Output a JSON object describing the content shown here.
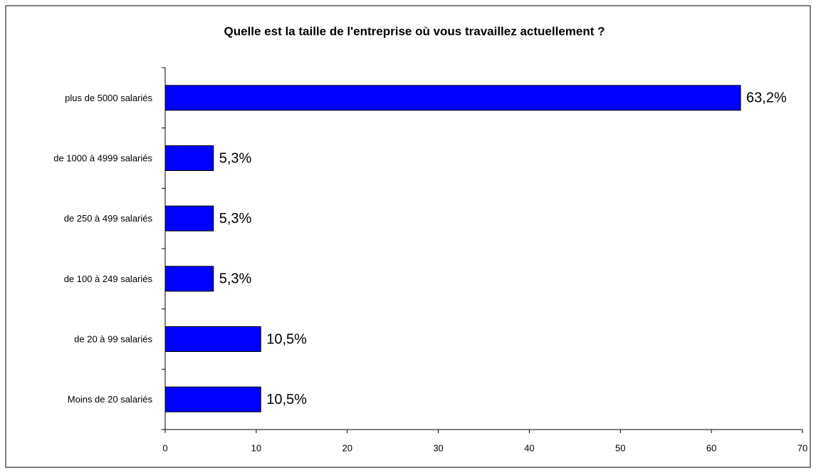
{
  "chart_data": {
    "type": "bar",
    "orientation": "horizontal",
    "title": "Quelle est la taille de l'entreprise où vous travaillez actuellement ?",
    "categories": [
      "plus de 5000 salariés",
      "de 1000 à 4999 salariés",
      "de 250 à 499 salariés",
      "de 100 à 249 salariés",
      "de 20 à 99 salariés",
      "Moins de 20 salariés"
    ],
    "values": [
      63.2,
      5.3,
      5.3,
      5.3,
      10.5,
      10.5
    ],
    "value_labels": [
      "63,2%",
      "5,3%",
      "5,3%",
      "5,3%",
      "10,5%",
      "10,5%"
    ],
    "color": "#0000ff",
    "xlim": [
      0,
      70
    ],
    "xticks": [
      0,
      10,
      20,
      30,
      40,
      50,
      60,
      70
    ],
    "grid": false
  }
}
